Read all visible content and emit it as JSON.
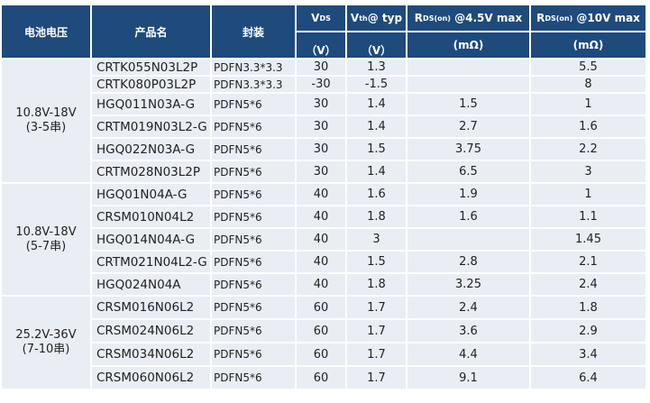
{
  "header": {
    "battery_voltage": "电池电压",
    "product_name": "产品名",
    "package": "封装",
    "vds": {
      "main": "V",
      "sub": "DS",
      "unit": "（V）"
    },
    "vth": {
      "main": "V",
      "sub": "th",
      "rest": "@ typ",
      "unit": "（V）"
    },
    "rds45": {
      "main": "R",
      "sub": "DS(on)",
      "rest": " @4.5V max",
      "unit": "(mΩ)"
    },
    "rds10": {
      "main": "R",
      "sub": "DS(on)",
      "rest": " @10V max",
      "unit": "(mΩ)"
    }
  },
  "colors": {
    "header_bg": "#1f4a7c",
    "cell_bg": "#e9edf4"
  },
  "groups": [
    {
      "voltage": "10.8V-18V",
      "series": "(3-5串)",
      "rows": [
        {
          "name": "CRTK055N03L2P",
          "pkg": "PDFN3.3*3.3",
          "vds": "30",
          "vth": "1.3",
          "r45": "",
          "r10": "5.5"
        },
        {
          "name": "CRTK080P03L2P",
          "pkg": "PDFN3.3*3.3",
          "vds": "-30",
          "vth": "-1.5",
          "r45": "",
          "r10": "8"
        },
        {
          "name": "HGQ011N03A-G",
          "pkg": "PDFN5*6",
          "vds": "30",
          "vth": "1.4",
          "r45": "1.5",
          "r10": "1"
        },
        {
          "name": "CRTM019N03L2-G",
          "pkg": "PDFN5*6",
          "vds": "30",
          "vth": "1.4",
          "r45": "2.7",
          "r10": "1.6"
        },
        {
          "name": "HGQ022N03A-G",
          "pkg": "PDFN5*6",
          "vds": "30",
          "vth": "1.5",
          "r45": "3.75",
          "r10": "2.2"
        },
        {
          "name": "CRTM028N03L2P",
          "pkg": "PDFN5*6",
          "vds": "30",
          "vth": "1.4",
          "r45": "6.5",
          "r10": "3"
        }
      ]
    },
    {
      "voltage": "10.8V-18V",
      "series": "(5-7串)",
      "rows": [
        {
          "name": "HGQ01N04A-G",
          "pkg": "PDFN5*6",
          "vds": "40",
          "vth": "1.6",
          "r45": "1.9",
          "r10": "1"
        },
        {
          "name": "CRSM010N04L2",
          "pkg": "PDFN5*6",
          "vds": "40",
          "vth": "1.8",
          "r45": "1.6",
          "r10": "1.1"
        },
        {
          "name": "HGQ014N04A-G",
          "pkg": "PDFN5*6",
          "vds": "40",
          "vth": "3",
          "r45": "",
          "r10": "1.45"
        },
        {
          "name": "CRTM021N04L2-G",
          "pkg": "PDFN5*6",
          "vds": "40",
          "vth": "1.5",
          "r45": "2.8",
          "r10": "2.1"
        },
        {
          "name": "HGQ024N04A",
          "pkg": "PDFN5*6",
          "vds": "40",
          "vth": "1.8",
          "r45": "3.25",
          "r10": "2.4"
        }
      ]
    },
    {
      "voltage": "25.2V-36V",
      "series": "(7-10串)",
      "rows": [
        {
          "name": "CRSM016N06L2",
          "pkg": "PDFN5*6",
          "vds": "60",
          "vth": "1.7",
          "r45": "2.4",
          "r10": "1.8"
        },
        {
          "name": "CRSM024N06L2",
          "pkg": "PDFN5*6",
          "vds": "60",
          "vth": "1.7",
          "r45": "3.6",
          "r10": "2.9"
        },
        {
          "name": "CRSM034N06L2",
          "pkg": "PDFN5*6",
          "vds": "60",
          "vth": "1.7",
          "r45": "4.4",
          "r10": "3.4"
        },
        {
          "name": "CRSM060N06L2",
          "pkg": "PDFN5*6",
          "vds": "60",
          "vth": "1.7",
          "r45": "9.1",
          "r10": "6.4"
        }
      ]
    }
  ]
}
